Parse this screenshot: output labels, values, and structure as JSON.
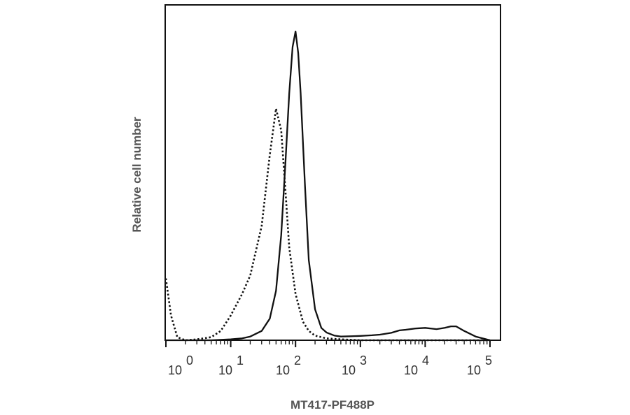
{
  "chart_data": {
    "type": "line",
    "title": "",
    "xlabel": "MT417-PF488P",
    "ylabel": "Relative cell number",
    "x_scale": "log",
    "xlim": [
      1,
      100000
    ],
    "ylim": [
      0,
      100
    ],
    "tick_labels": [
      {
        "base": "10",
        "exp": "0",
        "value": 1
      },
      {
        "base": "10",
        "exp": "1",
        "value": 10
      },
      {
        "base": "10",
        "exp": "2",
        "value": 100
      },
      {
        "base": "10",
        "exp": "3",
        "value": 1000
      },
      {
        "base": "10",
        "exp": "4",
        "value": 10000
      },
      {
        "base": "10",
        "exp": "5",
        "value": 100000
      }
    ],
    "grid": false,
    "legend": "none",
    "series": [
      {
        "style": "solid",
        "color": "#111111",
        "x": [
          1,
          5,
          10,
          15,
          20,
          30,
          40,
          50,
          60,
          70,
          80,
          90,
          100,
          110,
          120,
          140,
          160,
          200,
          250,
          300,
          400,
          500,
          700,
          1000,
          1500,
          2000,
          3000,
          4000,
          5000,
          7000,
          10000,
          15000,
          20000,
          25000,
          30000,
          40000,
          60000,
          100000
        ],
        "y": [
          0,
          0,
          0.3,
          0.6,
          1.2,
          3,
          7,
          16,
          34,
          58,
          80,
          95,
          100,
          93,
          80,
          50,
          26,
          10,
          4,
          2.5,
          1.5,
          1.2,
          1.3,
          1.4,
          1.6,
          1.8,
          2.4,
          3.2,
          3.4,
          3.8,
          4.0,
          3.6,
          4.0,
          4.5,
          4.5,
          3.0,
          1.2,
          0
        ]
      },
      {
        "style": "dotted",
        "color": "#111111",
        "x": [
          1,
          1.2,
          1.5,
          2,
          3,
          5,
          7,
          10,
          15,
          20,
          30,
          40,
          50,
          60,
          70,
          80,
          100,
          130,
          160,
          200,
          300,
          500,
          1000,
          100000
        ],
        "y": [
          20,
          8,
          1,
          0,
          0.3,
          1,
          3,
          8,
          15,
          21,
          37,
          60,
          75,
          68,
          48,
          30,
          15,
          6,
          3,
          1.5,
          0.6,
          0.3,
          0,
          0
        ]
      }
    ]
  }
}
